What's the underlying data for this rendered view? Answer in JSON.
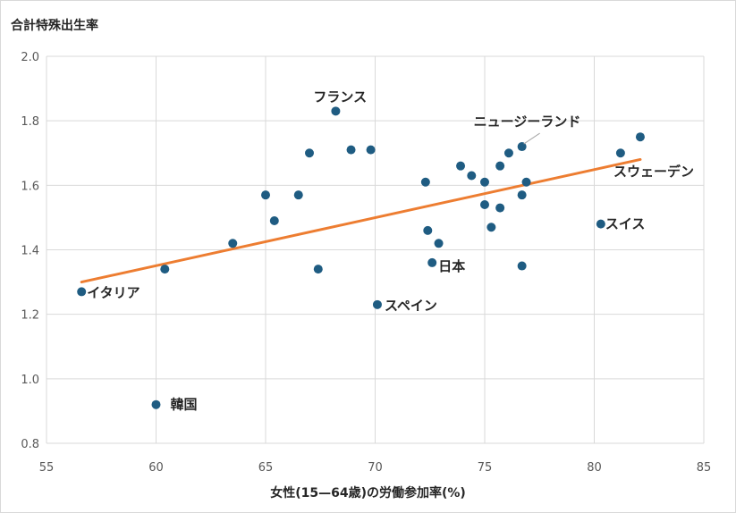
{
  "chart_data": {
    "type": "scatter",
    "xlabel": "女性(15—64歳)の労働参加率(%)",
    "ylabel": "合計特殊出生率",
    "xlim": [
      55,
      85
    ],
    "ylim": [
      0.8,
      2.0
    ],
    "x_ticks": [
      "55",
      "60",
      "65",
      "70",
      "75",
      "80",
      "85"
    ],
    "y_ticks": [
      "0.8",
      "1.0",
      "1.2",
      "1.4",
      "1.6",
      "1.8",
      "2.0"
    ],
    "grid": true,
    "legend": "none",
    "marker_color": "#1f5c82",
    "trendline_color": "#ed7d31",
    "points": [
      {
        "x": 56.6,
        "y": 1.27,
        "label": "イタリア"
      },
      {
        "x": 60.0,
        "y": 0.92,
        "label": "韓国"
      },
      {
        "x": 60.4,
        "y": 1.34,
        "label": ""
      },
      {
        "x": 63.5,
        "y": 1.42,
        "label": ""
      },
      {
        "x": 65.0,
        "y": 1.57,
        "label": ""
      },
      {
        "x": 65.4,
        "y": 1.49,
        "label": ""
      },
      {
        "x": 66.5,
        "y": 1.57,
        "label": ""
      },
      {
        "x": 67.0,
        "y": 1.7,
        "label": ""
      },
      {
        "x": 67.4,
        "y": 1.34,
        "label": ""
      },
      {
        "x": 68.2,
        "y": 1.83,
        "label": "フランス"
      },
      {
        "x": 68.9,
        "y": 1.71,
        "label": ""
      },
      {
        "x": 69.8,
        "y": 1.71,
        "label": ""
      },
      {
        "x": 70.1,
        "y": 1.23,
        "label": "スペイン"
      },
      {
        "x": 72.3,
        "y": 1.61,
        "label": ""
      },
      {
        "x": 72.4,
        "y": 1.46,
        "label": ""
      },
      {
        "x": 72.6,
        "y": 1.36,
        "label": "日本"
      },
      {
        "x": 72.9,
        "y": 1.42,
        "label": ""
      },
      {
        "x": 73.9,
        "y": 1.66,
        "label": ""
      },
      {
        "x": 74.4,
        "y": 1.63,
        "label": ""
      },
      {
        "x": 75.0,
        "y": 1.61,
        "label": ""
      },
      {
        "x": 75.0,
        "y": 1.54,
        "label": ""
      },
      {
        "x": 75.3,
        "y": 1.47,
        "label": ""
      },
      {
        "x": 75.7,
        "y": 1.53,
        "label": ""
      },
      {
        "x": 75.7,
        "y": 1.66,
        "label": ""
      },
      {
        "x": 76.1,
        "y": 1.7,
        "label": ""
      },
      {
        "x": 76.7,
        "y": 1.72,
        "label": "ニュージーランド"
      },
      {
        "x": 76.7,
        "y": 1.57,
        "label": ""
      },
      {
        "x": 76.7,
        "y": 1.35,
        "label": ""
      },
      {
        "x": 76.9,
        "y": 1.61,
        "label": ""
      },
      {
        "x": 80.3,
        "y": 1.48,
        "label": "スイス"
      },
      {
        "x": 81.2,
        "y": 1.7,
        "label": ""
      },
      {
        "x": 82.1,
        "y": 1.75,
        "label": "スウェーデン"
      }
    ],
    "trendline": {
      "x": [
        56.6,
        82.1
      ],
      "y": [
        1.3,
        1.68
      ]
    }
  }
}
